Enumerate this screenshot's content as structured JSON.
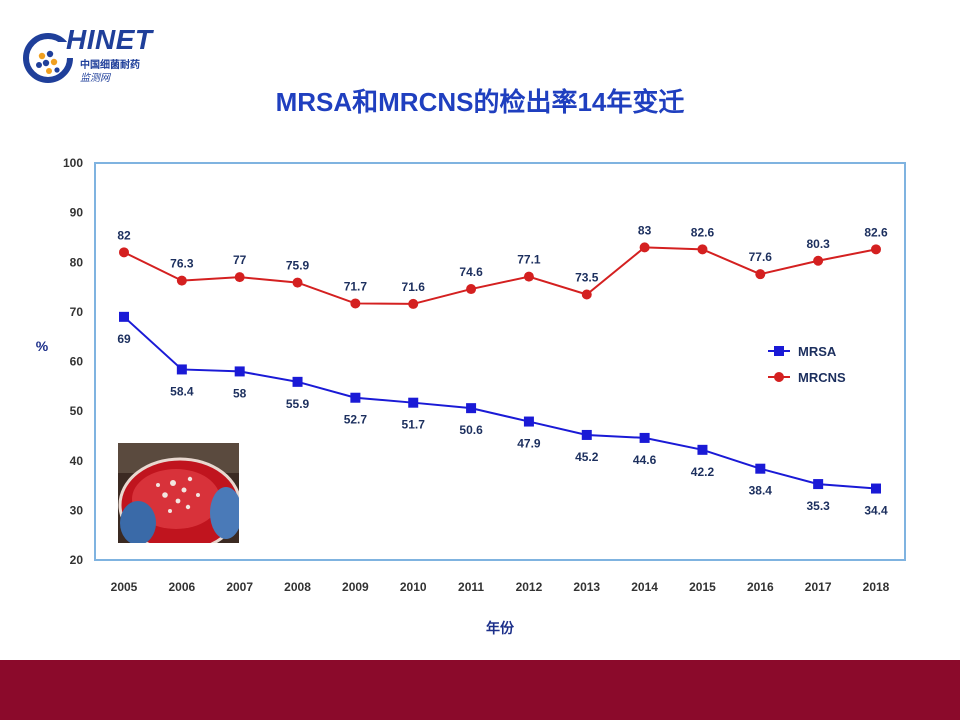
{
  "logo": {
    "brand": "HINET",
    "sub_line1": "中国细菌耐药",
    "sub_line2": "监测网"
  },
  "title": "MRSA和MRCNS的检出率14年变迁",
  "colors": {
    "title": "#1f3fbf",
    "mrsa": "#1a1ad6",
    "mrcns": "#d42020",
    "axis_frame": "#7fb3e0",
    "footer_band": "#8b0a2b"
  },
  "chart_data": {
    "type": "line",
    "title": "MRSA和MRCNS的检出率14年变迁",
    "xlabel": "年份",
    "ylabel": "%",
    "ylim": [
      20,
      100
    ],
    "yticks": [
      20,
      30,
      40,
      50,
      60,
      70,
      80,
      90,
      100
    ],
    "grid": false,
    "legend_position": "right",
    "categories": [
      "2005",
      "2006",
      "2007",
      "2008",
      "2009",
      "2010",
      "2011",
      "2012",
      "2013",
      "2014",
      "2015",
      "2016",
      "2017",
      "2018"
    ],
    "series": [
      {
        "name": "MRSA",
        "marker": "square",
        "color": "#1a1ad6",
        "values": [
          69,
          58.4,
          58,
          55.9,
          52.7,
          51.7,
          50.6,
          47.9,
          45.2,
          44.6,
          42.2,
          38.4,
          35.3,
          34.4
        ],
        "labels": [
          "69",
          "58.4",
          "58",
          "55.9",
          "52.7",
          "51.7",
          "50.6",
          "47.9",
          "45.2",
          "44.6",
          "42.2",
          "38.4",
          "35.3",
          "34.4"
        ]
      },
      {
        "name": "MRCNS",
        "marker": "circle",
        "color": "#d42020",
        "values": [
          82,
          76.3,
          77,
          75.9,
          71.7,
          71.6,
          74.6,
          77.1,
          73.5,
          83,
          82.6,
          77.6,
          80.3,
          82.6
        ],
        "labels": [
          "82",
          "76.3",
          "77",
          "75.9",
          "71.7",
          "71.6",
          "74.6",
          "77.1",
          "73.5",
          "83",
          "82.6",
          "77.6",
          "80.3",
          "82.6"
        ]
      }
    ]
  }
}
